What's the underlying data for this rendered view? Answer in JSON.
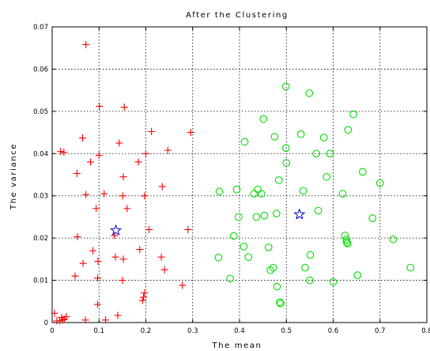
{
  "chart_data": {
    "type": "scatter",
    "title": "After the Clustering",
    "xlabel": "The mean",
    "ylabel": "The variance",
    "xlim": [
      0,
      0.8
    ],
    "ylim": [
      0,
      0.07
    ],
    "xticks": [
      "0",
      "0.1",
      "0.2",
      "0.3",
      "0.4",
      "0.5",
      "0.6",
      "0.7",
      "0.8"
    ],
    "yticks": [
      "0",
      "0.01",
      "0.02",
      "0.03",
      "0.04",
      "0.05",
      "0.06",
      "0.07"
    ],
    "grid": true,
    "series": [
      {
        "marker": "plus",
        "color": "#ff0000",
        "points": [
          [
            0.072,
            0.0658
          ],
          [
            0.005,
            0.0022
          ],
          [
            0.016,
            0.0004
          ],
          [
            0.022,
            0.0006
          ],
          [
            0.026,
            0.0008
          ],
          [
            0.03,
            0.0014
          ],
          [
            0.071,
            0.0006
          ],
          [
            0.114,
            0.0006
          ],
          [
            0.14,
            0.0017
          ],
          [
            0.01,
            0.0004
          ],
          [
            0.02,
            0.0012
          ],
          [
            0.049,
            0.011
          ],
          [
            0.054,
            0.0203
          ],
          [
            0.066,
            0.014
          ],
          [
            0.072,
            0.0303
          ],
          [
            0.065,
            0.0437
          ],
          [
            0.053,
            0.0353
          ],
          [
            0.018,
            0.0405
          ],
          [
            0.025,
            0.0403
          ],
          [
            0.082,
            0.038
          ],
          [
            0.094,
            0.027
          ],
          [
            0.097,
            0.0043
          ],
          [
            0.097,
            0.0105
          ],
          [
            0.098,
            0.0145
          ],
          [
            0.087,
            0.017
          ],
          [
            0.1,
            0.0396
          ],
          [
            0.101,
            0.0512
          ],
          [
            0.111,
            0.0305
          ],
          [
            0.133,
            0.0206
          ],
          [
            0.135,
            0.0155
          ],
          [
            0.143,
            0.0425
          ],
          [
            0.15,
            0.01
          ],
          [
            0.152,
            0.015
          ],
          [
            0.151,
            0.03
          ],
          [
            0.152,
            0.0345
          ],
          [
            0.16,
            0.027
          ],
          [
            0.154,
            0.051
          ],
          [
            0.184,
            0.038
          ],
          [
            0.187,
            0.0173
          ],
          [
            0.193,
            0.0052
          ],
          [
            0.195,
            0.006
          ],
          [
            0.197,
            0.007
          ],
          [
            0.197,
            0.03
          ],
          [
            0.2,
            0.04
          ],
          [
            0.207,
            0.022
          ],
          [
            0.212,
            0.0452
          ],
          [
            0.233,
            0.0155
          ],
          [
            0.235,
            0.0322
          ],
          [
            0.24,
            0.0125
          ],
          [
            0.247,
            0.0408
          ],
          [
            0.278,
            0.0088
          ],
          [
            0.29,
            0.022
          ],
          [
            0.296,
            0.045
          ]
        ]
      },
      {
        "marker": "circle",
        "color": "#00dd00",
        "points": [
          [
            0.357,
            0.031
          ],
          [
            0.355,
            0.0154
          ],
          [
            0.38,
            0.0104
          ],
          [
            0.388,
            0.0205
          ],
          [
            0.394,
            0.0315
          ],
          [
            0.398,
            0.025
          ],
          [
            0.409,
            0.018
          ],
          [
            0.411,
            0.0428
          ],
          [
            0.419,
            0.0155
          ],
          [
            0.431,
            0.0305
          ],
          [
            0.436,
            0.025
          ],
          [
            0.439,
            0.0315
          ],
          [
            0.447,
            0.0305
          ],
          [
            0.451,
            0.0482
          ],
          [
            0.453,
            0.0253
          ],
          [
            0.462,
            0.0178
          ],
          [
            0.466,
            0.0124
          ],
          [
            0.472,
            0.013
          ],
          [
            0.475,
            0.044
          ],
          [
            0.479,
            0.0258
          ],
          [
            0.48,
            0.0085
          ],
          [
            0.484,
            0.0337
          ],
          [
            0.486,
            0.0048
          ],
          [
            0.488,
            0.0045
          ],
          [
            0.499,
            0.0413
          ],
          [
            0.5,
            0.0378
          ],
          [
            0.499,
            0.0559
          ],
          [
            0.531,
            0.0446
          ],
          [
            0.536,
            0.0312
          ],
          [
            0.54,
            0.013
          ],
          [
            0.55,
            0.01
          ],
          [
            0.551,
            0.016
          ],
          [
            0.549,
            0.0543
          ],
          [
            0.564,
            0.04
          ],
          [
            0.568,
            0.0265
          ],
          [
            0.58,
            0.0438
          ],
          [
            0.586,
            0.0345
          ],
          [
            0.593,
            0.04
          ],
          [
            0.6,
            0.0096
          ],
          [
            0.62,
            0.0305
          ],
          [
            0.625,
            0.0206
          ],
          [
            0.628,
            0.0196
          ],
          [
            0.629,
            0.019
          ],
          [
            0.631,
            0.0187
          ],
          [
            0.632,
            0.0456
          ],
          [
            0.643,
            0.0493
          ],
          [
            0.652,
            0.0112
          ],
          [
            0.663,
            0.0357
          ],
          [
            0.684,
            0.0247
          ],
          [
            0.7,
            0.033
          ],
          [
            0.728,
            0.0197
          ],
          [
            0.765,
            0.013
          ]
        ]
      },
      {
        "marker": "star",
        "color": "#0000dd",
        "points": [
          [
            0.136,
            0.0218
          ],
          [
            0.528,
            0.0256
          ]
        ]
      }
    ]
  }
}
